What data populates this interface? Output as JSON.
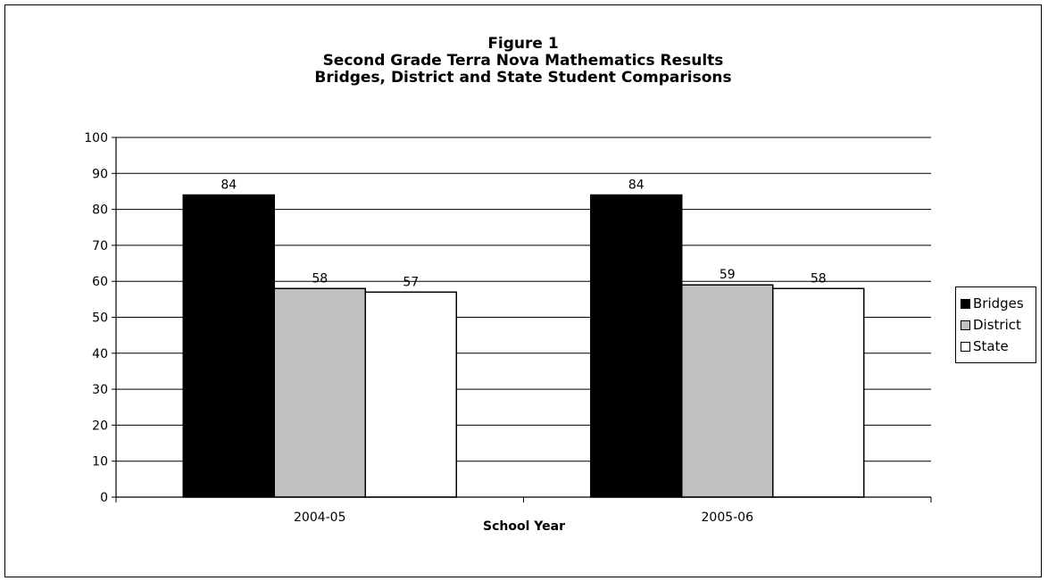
{
  "chart_data": {
    "type": "bar",
    "title": "Figure 1",
    "subtitle": [
      "Second Grade Terra Nova Mathematics Results",
      "Bridges, District and State Student Comparisons"
    ],
    "xlabel": "School Year",
    "ylabel": "",
    "categories": [
      "2004-05",
      "2005-06"
    ],
    "series": [
      {
        "name": "Bridges",
        "values": [
          84,
          84
        ],
        "color": "#000000"
      },
      {
        "name": "District",
        "values": [
          58,
          59
        ],
        "color": "#c0c0c0"
      },
      {
        "name": "State",
        "values": [
          57,
          58
        ],
        "color": "#ffffff"
      }
    ],
    "ylim": [
      0,
      100
    ],
    "yticks": [
      0,
      10,
      20,
      30,
      40,
      50,
      60,
      70,
      80,
      90,
      100
    ],
    "grid": true,
    "legend": "right",
    "data_labels": true
  }
}
